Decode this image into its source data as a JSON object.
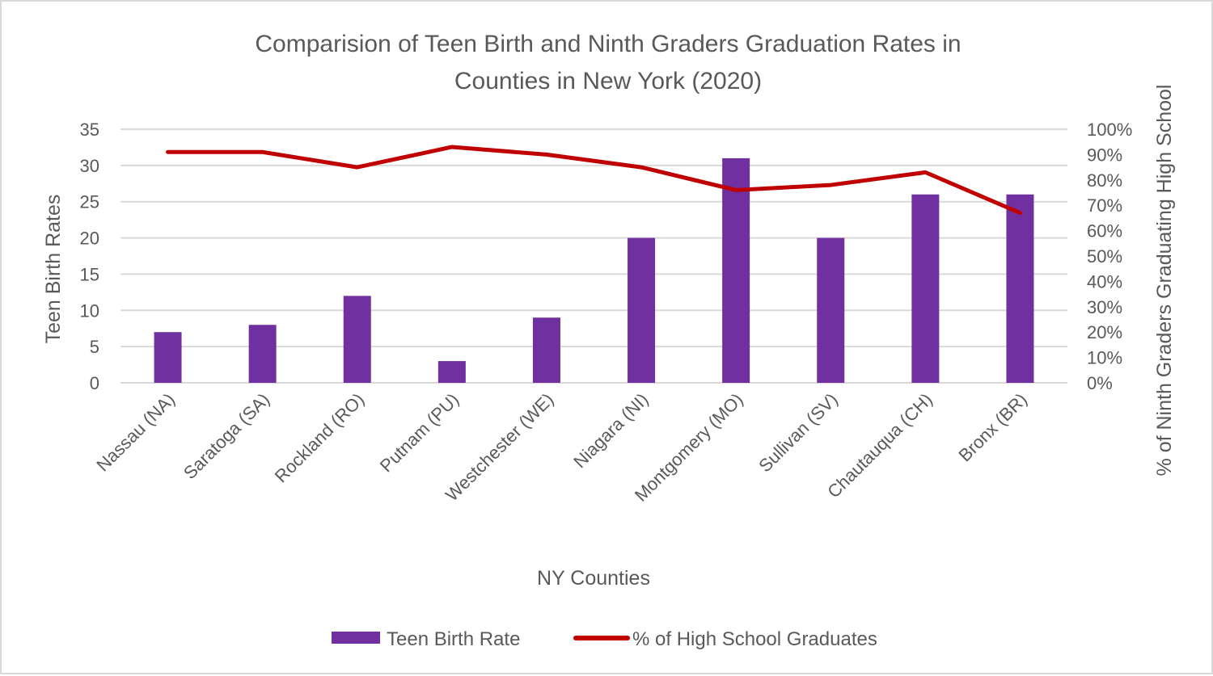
{
  "chart_data": {
    "type": "bar",
    "title_lines": [
      "Comparision of Teen Birth and Ninth Graders Graduation Rates in",
      "Counties in New York (2020)"
    ],
    "xlabel": "NY Counties",
    "ylabel": "Teen Birth Rates",
    "y2label": "% of Ninth Graders Graduating High School",
    "categories": [
      "Nassau (NA)",
      "Saratoga (SA)",
      "Rockland (RO)",
      "Putnam (PU)",
      "Westchester (WE)",
      "Niagara (NI)",
      "Montgomery (MO)",
      "Sullivan (SV)",
      "Chautauqua (CH)",
      "Bronx (BR)"
    ],
    "ylim": [
      0,
      35
    ],
    "y_ticks": [
      "0",
      "5",
      "10",
      "15",
      "20",
      "25",
      "30",
      "35"
    ],
    "y2lim": [
      0,
      1
    ],
    "y2_ticks": [
      "0%",
      "10%",
      "20%",
      "30%",
      "40%",
      "50%",
      "60%",
      "70%",
      "80%",
      "90%",
      "100%"
    ],
    "grid": true,
    "legend_position": "bottom",
    "series": [
      {
        "name": "Teen Birth Rate",
        "type": "bar",
        "axis": "left",
        "color": "#7030a0",
        "values": [
          7,
          8,
          12,
          3,
          9,
          20,
          31,
          20,
          26,
          26
        ]
      },
      {
        "name": "% of High School Graduates",
        "type": "line",
        "axis": "right",
        "color": "#c00000",
        "values": [
          0.91,
          0.91,
          0.85,
          0.93,
          0.9,
          0.85,
          0.76,
          0.78,
          0.83,
          0.67
        ]
      }
    ]
  }
}
